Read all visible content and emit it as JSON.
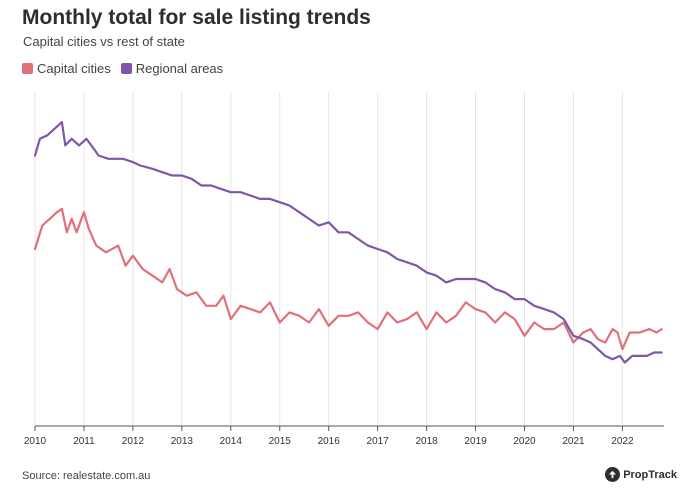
{
  "chart_data": {
    "type": "line",
    "title": "Monthly total for sale listing trends",
    "subtitle": "Capital cities vs rest of state",
    "xlabel": "",
    "ylabel": "",
    "x_ticks": [
      "2010",
      "2011",
      "2012",
      "2013",
      "2014",
      "2015",
      "2016",
      "2017",
      "2018",
      "2019",
      "2020",
      "2021",
      "2022"
    ],
    "x_range": [
      2010.0,
      2022.85
    ],
    "y_range": [
      0,
      100
    ],
    "grid": "vertical",
    "legend_position": "top-left",
    "series": [
      {
        "name": "Capital cities",
        "color": "#e0707a",
        "points": [
          [
            2010.0,
            53
          ],
          [
            2010.15,
            60
          ],
          [
            2010.3,
            62
          ],
          [
            2010.45,
            64
          ],
          [
            2010.55,
            65
          ],
          [
            2010.65,
            58
          ],
          [
            2010.75,
            62
          ],
          [
            2010.85,
            58
          ],
          [
            2011.0,
            64
          ],
          [
            2011.1,
            59
          ],
          [
            2011.25,
            54
          ],
          [
            2011.45,
            52
          ],
          [
            2011.7,
            54
          ],
          [
            2011.85,
            48
          ],
          [
            2012.0,
            51
          ],
          [
            2012.2,
            47
          ],
          [
            2012.4,
            45
          ],
          [
            2012.6,
            43
          ],
          [
            2012.75,
            47
          ],
          [
            2012.9,
            41
          ],
          [
            2013.1,
            39
          ],
          [
            2013.3,
            40
          ],
          [
            2013.5,
            36
          ],
          [
            2013.7,
            36
          ],
          [
            2013.85,
            39
          ],
          [
            2014.0,
            32
          ],
          [
            2014.2,
            36
          ],
          [
            2014.4,
            35
          ],
          [
            2014.6,
            34
          ],
          [
            2014.8,
            37
          ],
          [
            2015.0,
            31
          ],
          [
            2015.2,
            34
          ],
          [
            2015.4,
            33
          ],
          [
            2015.6,
            31
          ],
          [
            2015.8,
            35
          ],
          [
            2016.0,
            30
          ],
          [
            2016.2,
            33
          ],
          [
            2016.4,
            33
          ],
          [
            2016.6,
            34
          ],
          [
            2016.8,
            31
          ],
          [
            2017.0,
            29
          ],
          [
            2017.2,
            34
          ],
          [
            2017.4,
            31
          ],
          [
            2017.6,
            32
          ],
          [
            2017.8,
            34
          ],
          [
            2018.0,
            29
          ],
          [
            2018.2,
            34
          ],
          [
            2018.4,
            31
          ],
          [
            2018.6,
            33
          ],
          [
            2018.8,
            37
          ],
          [
            2019.0,
            35
          ],
          [
            2019.2,
            34
          ],
          [
            2019.4,
            31
          ],
          [
            2019.6,
            34
          ],
          [
            2019.8,
            32
          ],
          [
            2020.0,
            27
          ],
          [
            2020.2,
            31
          ],
          [
            2020.4,
            29
          ],
          [
            2020.6,
            29
          ],
          [
            2020.8,
            31
          ],
          [
            2021.0,
            25
          ],
          [
            2021.2,
            28
          ],
          [
            2021.35,
            29
          ],
          [
            2021.5,
            26
          ],
          [
            2021.65,
            25
          ],
          [
            2021.8,
            29
          ],
          [
            2021.9,
            28
          ],
          [
            2022.0,
            23
          ],
          [
            2022.15,
            28
          ],
          [
            2022.35,
            28
          ],
          [
            2022.55,
            29
          ],
          [
            2022.7,
            28
          ],
          [
            2022.8,
            29
          ]
        ]
      },
      {
        "name": "Regional areas",
        "color": "#7e57a6",
        "points": [
          [
            2010.0,
            81
          ],
          [
            2010.1,
            86
          ],
          [
            2010.25,
            87
          ],
          [
            2010.4,
            89
          ],
          [
            2010.55,
            91
          ],
          [
            2010.62,
            84
          ],
          [
            2010.75,
            86
          ],
          [
            2010.9,
            84
          ],
          [
            2011.05,
            86
          ],
          [
            2011.15,
            84
          ],
          [
            2011.3,
            81
          ],
          [
            2011.5,
            80
          ],
          [
            2011.8,
            80
          ],
          [
            2012.0,
            79
          ],
          [
            2012.15,
            78
          ],
          [
            2012.4,
            77
          ],
          [
            2012.6,
            76
          ],
          [
            2012.8,
            75
          ],
          [
            2013.0,
            75
          ],
          [
            2013.2,
            74
          ],
          [
            2013.4,
            72
          ],
          [
            2013.6,
            72
          ],
          [
            2013.8,
            71
          ],
          [
            2014.0,
            70
          ],
          [
            2014.2,
            70
          ],
          [
            2014.4,
            69
          ],
          [
            2014.6,
            68
          ],
          [
            2014.8,
            68
          ],
          [
            2015.0,
            67
          ],
          [
            2015.2,
            66
          ],
          [
            2015.4,
            64
          ],
          [
            2015.6,
            62
          ],
          [
            2015.8,
            60
          ],
          [
            2016.0,
            61
          ],
          [
            2016.2,
            58
          ],
          [
            2016.4,
            58
          ],
          [
            2016.6,
            56
          ],
          [
            2016.8,
            54
          ],
          [
            2017.0,
            53
          ],
          [
            2017.2,
            52
          ],
          [
            2017.4,
            50
          ],
          [
            2017.6,
            49
          ],
          [
            2017.8,
            48
          ],
          [
            2018.0,
            46
          ],
          [
            2018.2,
            45
          ],
          [
            2018.4,
            43
          ],
          [
            2018.6,
            44
          ],
          [
            2018.8,
            44
          ],
          [
            2019.0,
            44
          ],
          [
            2019.2,
            43
          ],
          [
            2019.4,
            41
          ],
          [
            2019.6,
            40
          ],
          [
            2019.8,
            38
          ],
          [
            2020.0,
            38
          ],
          [
            2020.2,
            36
          ],
          [
            2020.4,
            35
          ],
          [
            2020.6,
            34
          ],
          [
            2020.8,
            32
          ],
          [
            2021.0,
            27
          ],
          [
            2021.2,
            26
          ],
          [
            2021.35,
            25
          ],
          [
            2021.5,
            23
          ],
          [
            2021.65,
            21
          ],
          [
            2021.8,
            20
          ],
          [
            2021.95,
            21
          ],
          [
            2022.05,
            19
          ],
          [
            2022.2,
            21
          ],
          [
            2022.35,
            21
          ],
          [
            2022.5,
            21
          ],
          [
            2022.65,
            22
          ],
          [
            2022.8,
            22
          ]
        ]
      }
    ]
  },
  "footer": {
    "source": "Source: realestate.com.au",
    "brand": "PropTrack",
    "brand_icon": "proptrack-logo-icon"
  }
}
